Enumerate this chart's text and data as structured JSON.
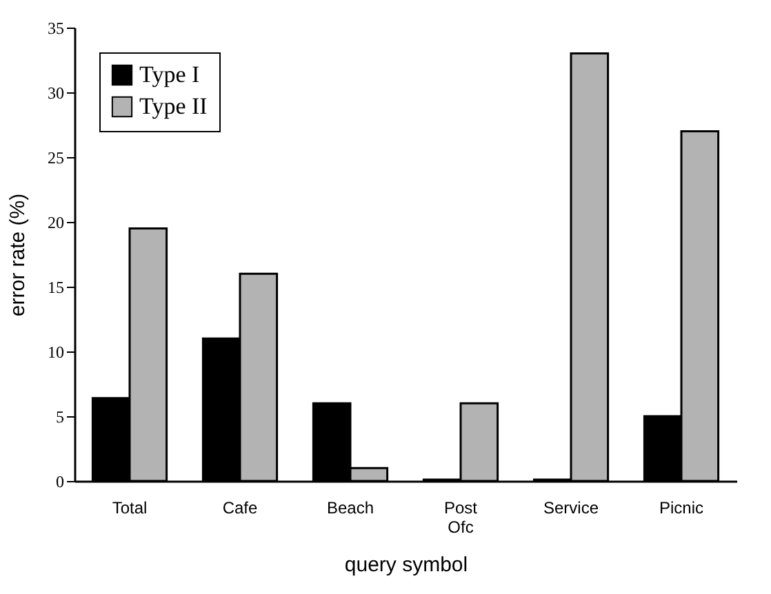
{
  "chart_data": {
    "type": "bar",
    "xlabel": "query symbol",
    "ylabel": "error rate (%)",
    "categories": [
      "Total",
      "Cafe",
      "Beach",
      "Post Ofc",
      "Service",
      "Picnic"
    ],
    "series": [
      {
        "name": "Type I",
        "color": "#000000",
        "values": [
          6.4,
          11,
          6,
          0.1,
          0.1,
          5
        ]
      },
      {
        "name": "Type II",
        "color": "#b3b3b3",
        "values": [
          19.5,
          16,
          1,
          6,
          33,
          27
        ]
      }
    ],
    "ylim": [
      0,
      35
    ],
    "yticks": [
      0,
      5,
      10,
      15,
      20,
      25,
      30,
      35
    ],
    "grid": false,
    "legend": "top left"
  }
}
